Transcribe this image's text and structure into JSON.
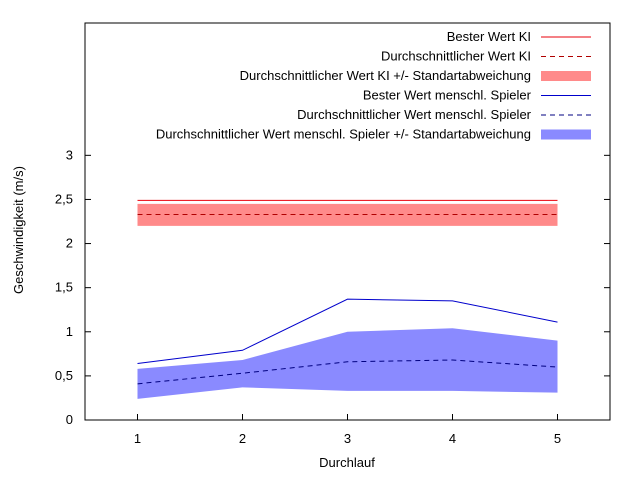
{
  "chart_data": {
    "type": "line",
    "title": "",
    "xlabel": "Durchlauf",
    "ylabel": "Geschwindigkeit (m/s)",
    "x": [
      1,
      2,
      3,
      4,
      5
    ],
    "xticks": [
      1,
      2,
      3,
      4,
      5
    ],
    "yticks": [
      "0",
      "0,5",
      "1",
      "1,5",
      "2",
      "2,5",
      "3"
    ],
    "yticks_values": [
      0,
      0.5,
      1,
      1.5,
      2,
      2.5,
      3
    ],
    "xlim": [
      0.5,
      5.5
    ],
    "ylim": [
      0,
      3.0
    ],
    "grid": false,
    "legend_position": "top-right",
    "series": [
      {
        "name": "Bester Wert KI",
        "style": "solid",
        "color": "#e8000b",
        "values": [
          2.49,
          2.49,
          2.49,
          2.49,
          2.49
        ]
      },
      {
        "name": "Durchschnittlicher Wert KI",
        "style": "dashed",
        "color": "#b00000",
        "values": [
          2.33,
          2.33,
          2.33,
          2.33,
          2.33
        ]
      },
      {
        "name": "Durchschnittlicher Wert KI +/- Standartabweichung",
        "style": "band",
        "color": "#ff8a8a",
        "lower": [
          2.2,
          2.2,
          2.2,
          2.2,
          2.2
        ],
        "upper": [
          2.45,
          2.45,
          2.45,
          2.45,
          2.45
        ]
      },
      {
        "name": "Bester Wert menschl. Spieler",
        "style": "solid",
        "color": "#0000cc",
        "values": [
          0.64,
          0.79,
          1.37,
          1.35,
          1.11
        ]
      },
      {
        "name": "Durchschnittlicher Wert menschl. Spieler",
        "style": "dashed",
        "color": "#000080",
        "values": [
          0.41,
          0.53,
          0.66,
          0.68,
          0.6
        ]
      },
      {
        "name": "Durchschnittlicher Wert menschl. Spieler +/- Standartabweichung",
        "style": "band",
        "color": "#8a8aff",
        "lower": [
          0.24,
          0.37,
          0.33,
          0.33,
          0.31
        ],
        "upper": [
          0.58,
          0.68,
          1.0,
          1.04,
          0.9
        ]
      }
    ]
  }
}
